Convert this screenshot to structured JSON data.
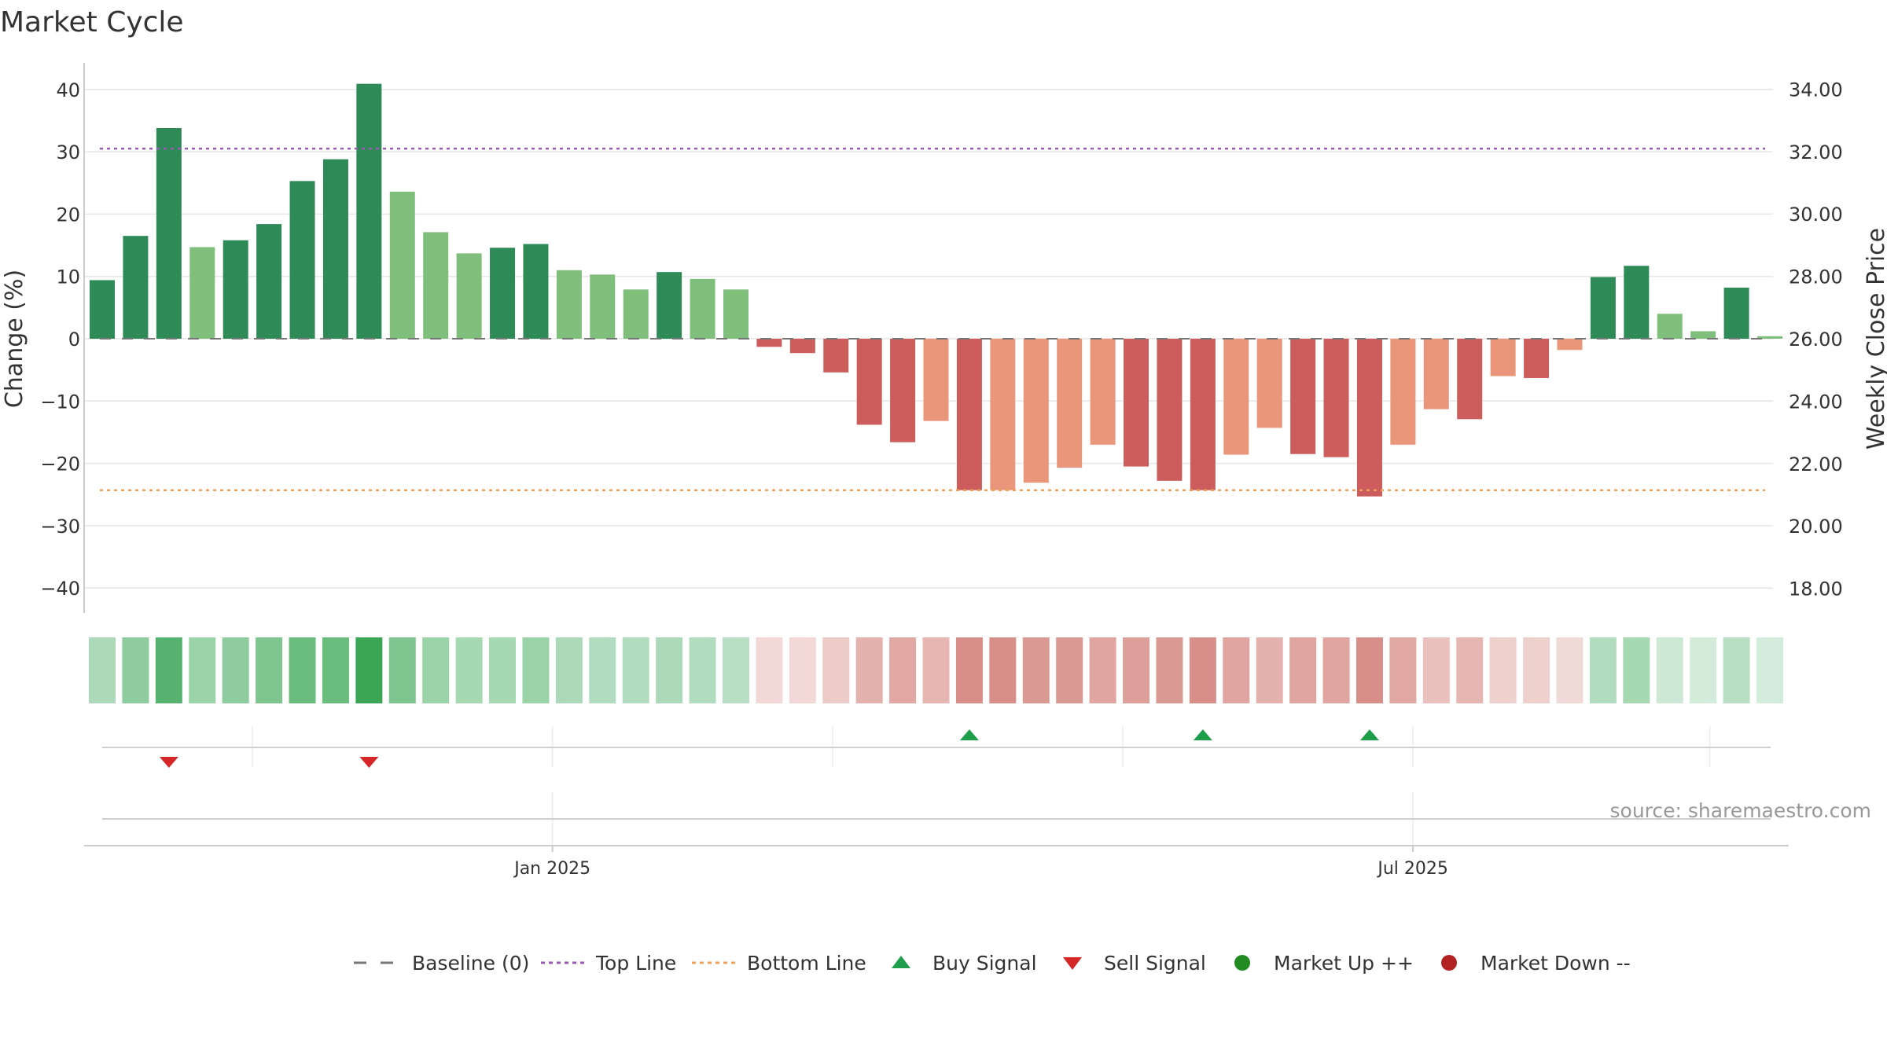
{
  "chart_data": {
    "type": "bar",
    "title": "Market Cycle",
    "ylabel": "Change (%)",
    "y2label": "Weekly Close Price",
    "ylim": [
      -45,
      45
    ],
    "yticks": [
      -40,
      -30,
      -20,
      -10,
      0,
      10,
      20,
      30,
      40
    ],
    "ytick_labels": [
      "−40",
      "−30",
      "−20",
      "−10",
      "0",
      "10",
      "20",
      "30",
      "40"
    ],
    "y2lim": [
      16.5,
      34.7
    ],
    "y2ticks": [
      18,
      20,
      22,
      24,
      26,
      28,
      30,
      32,
      34
    ],
    "y2tick_labels": [
      "18.00",
      "20.00",
      "22.00",
      "24.00",
      "26.00",
      "28.00",
      "30.00",
      "32.00",
      "34.00"
    ],
    "x_ticks": [
      {
        "label": "Jan 2025",
        "index": 13.5
      },
      {
        "label": "Jul 2025",
        "index": 39.3
      }
    ],
    "minor_ticks": [
      4.5,
      13.5,
      21.9,
      30.6,
      39.3,
      48.2
    ],
    "baseline": 0,
    "top_line": 30.5,
    "bottom_line": -24.3,
    "values": [
      9.4,
      16.5,
      33.8,
      14.7,
      15.8,
      18.4,
      25.3,
      28.8,
      40.9,
      23.6,
      17.1,
      13.7,
      14.6,
      15.2,
      11.0,
      10.3,
      7.9,
      10.7,
      9.6,
      7.9,
      -1.3,
      -2.3,
      -5.4,
      -13.8,
      -16.6,
      -13.2,
      -24.3,
      -24.3,
      -23.1,
      -20.7,
      -17.0,
      -20.5,
      -22.8,
      -24.3,
      -18.6,
      -14.3,
      -18.5,
      -19.0,
      -25.3,
      -17.0,
      -11.3,
      -12.9,
      -6.0,
      -6.3,
      -1.8,
      9.9,
      11.7,
      4.0,
      1.2,
      8.2,
      0.4
    ],
    "bar_colors": [
      "#2e8b57",
      "#2e8b57",
      "#2e8b57",
      "#7fbf7b",
      "#2e8b57",
      "#2e8b57",
      "#2e8b57",
      "#2e8b57",
      "#2e8b57",
      "#7fbf7b",
      "#7fbf7b",
      "#7fbf7b",
      "#2e8b57",
      "#2e8b57",
      "#7fbf7b",
      "#7fbf7b",
      "#7fbf7b",
      "#2e8b57",
      "#7fbf7b",
      "#7fbf7b",
      "#cd5c5c",
      "#cd5c5c",
      "#cd5c5c",
      "#cd5c5c",
      "#cd5c5c",
      "#e9967a",
      "#cd5c5c",
      "#e9967a",
      "#e9967a",
      "#e9967a",
      "#e9967a",
      "#cd5c5c",
      "#cd5c5c",
      "#cd5c5c",
      "#e9967a",
      "#e9967a",
      "#cd5c5c",
      "#cd5c5c",
      "#cd5c5c",
      "#e9967a",
      "#e9967a",
      "#cd5c5c",
      "#e9967a",
      "#cd5c5c",
      "#e9967a",
      "#2e8b57",
      "#2e8b57",
      "#7fbf7b",
      "#7fbf7b",
      "#2e8b57",
      "#7fbf7b"
    ],
    "heat_colors": [
      "#add9bb",
      "#8ecb9e",
      "#56b26f",
      "#9bd3a8",
      "#8ecb9e",
      "#7fc590",
      "#6bbd7e",
      "#6bbd7e",
      "#3aa655",
      "#7fc590",
      "#9bd3a8",
      "#a6d8b2",
      "#a6d8b2",
      "#9bd3a8",
      "#add9bb",
      "#b2dcbf",
      "#b2dcbf",
      "#add9bb",
      "#b2dcbf",
      "#b8dfc3",
      "#f2d9d7",
      "#f2d9d7",
      "#edcbc8",
      "#e4b2ae",
      "#e2a8a4",
      "#e6b6b2",
      "#d88f8a",
      "#d88f8a",
      "#db9994",
      "#db9994",
      "#e0a5a1",
      "#dd9f9a",
      "#db9994",
      "#d88f8a",
      "#e0a5a1",
      "#e4b2ae",
      "#e0a5a1",
      "#e0a5a1",
      "#d88f8a",
      "#e2a8a4",
      "#ebc1bd",
      "#e6b6b2",
      "#eed0cd",
      "#eed0cd",
      "#f0dad8",
      "#b2dcbf",
      "#a6d8b2",
      "#cde9d5",
      "#d3ecda",
      "#b8dfc3",
      "#d4ecdc"
    ],
    "buy_signals": [
      26,
      33,
      38
    ],
    "sell_signals": [
      2,
      8
    ],
    "source_text": "source: sharemaestro.com",
    "legend": [
      {
        "label": "Baseline (0)",
        "kind": "dash",
        "color": "#777777"
      },
      {
        "label": "Top Line",
        "kind": "dotted",
        "color": "#9b59b6"
      },
      {
        "label": "Bottom Line",
        "kind": "dotted",
        "color": "#f0a05a"
      },
      {
        "label": "Buy Signal",
        "kind": "tri-up",
        "color": "#1e9e4a"
      },
      {
        "label": "Sell Signal",
        "kind": "tri-down",
        "color": "#d62728"
      },
      {
        "label": "Market Up ++",
        "kind": "dot",
        "color": "#228b22"
      },
      {
        "label": "Market Down --",
        "kind": "dot",
        "color": "#b22222"
      }
    ],
    "colors": {
      "grid": "#e6e6e6",
      "axis": "#cccccc",
      "baseline": "#777777",
      "top_line": "#9b59b6",
      "bottom_line": "#f0a05a",
      "buy": "#1e9e4a",
      "sell": "#d62728"
    }
  }
}
